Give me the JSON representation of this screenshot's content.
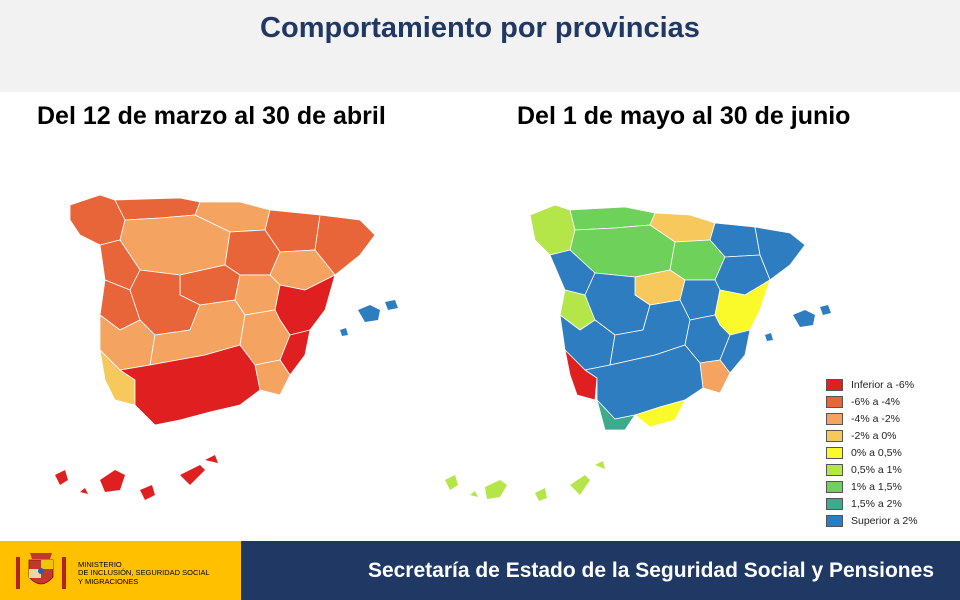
{
  "header": {
    "title": "Comportamiento por provincias"
  },
  "maps": [
    {
      "period_label": "Del 12 de marzo al 30 de abril"
    },
    {
      "period_label": "Del 1 de mayo al 30 de junio"
    }
  ],
  "legend": {
    "items": [
      {
        "label": "Inferior a -6%",
        "color": "#e02020"
      },
      {
        "label": "-6% a -4%",
        "color": "#e8653a"
      },
      {
        "label": "-4% a -2%",
        "color": "#f4a460"
      },
      {
        "label": "-2% a 0%",
        "color": "#f7c85c"
      },
      {
        "label": "0% a 0,5%",
        "color": "#fafa2a"
      },
      {
        "label": "0,5% a 1%",
        "color": "#b4e64a"
      },
      {
        "label": "1% a 1,5%",
        "color": "#6dd15a"
      },
      {
        "label": "1,5% a 2%",
        "color": "#3daa8c"
      },
      {
        "label": "Superior a 2%",
        "color": "#2e7dc0"
      }
    ]
  },
  "footer": {
    "ministry_lines": [
      "Ministerio",
      "de Inclusión, Seguridad Social",
      "y Migraciones"
    ],
    "secretariat": "Secretaría de Estado de la Seguridad Social y Pensiones"
  }
}
